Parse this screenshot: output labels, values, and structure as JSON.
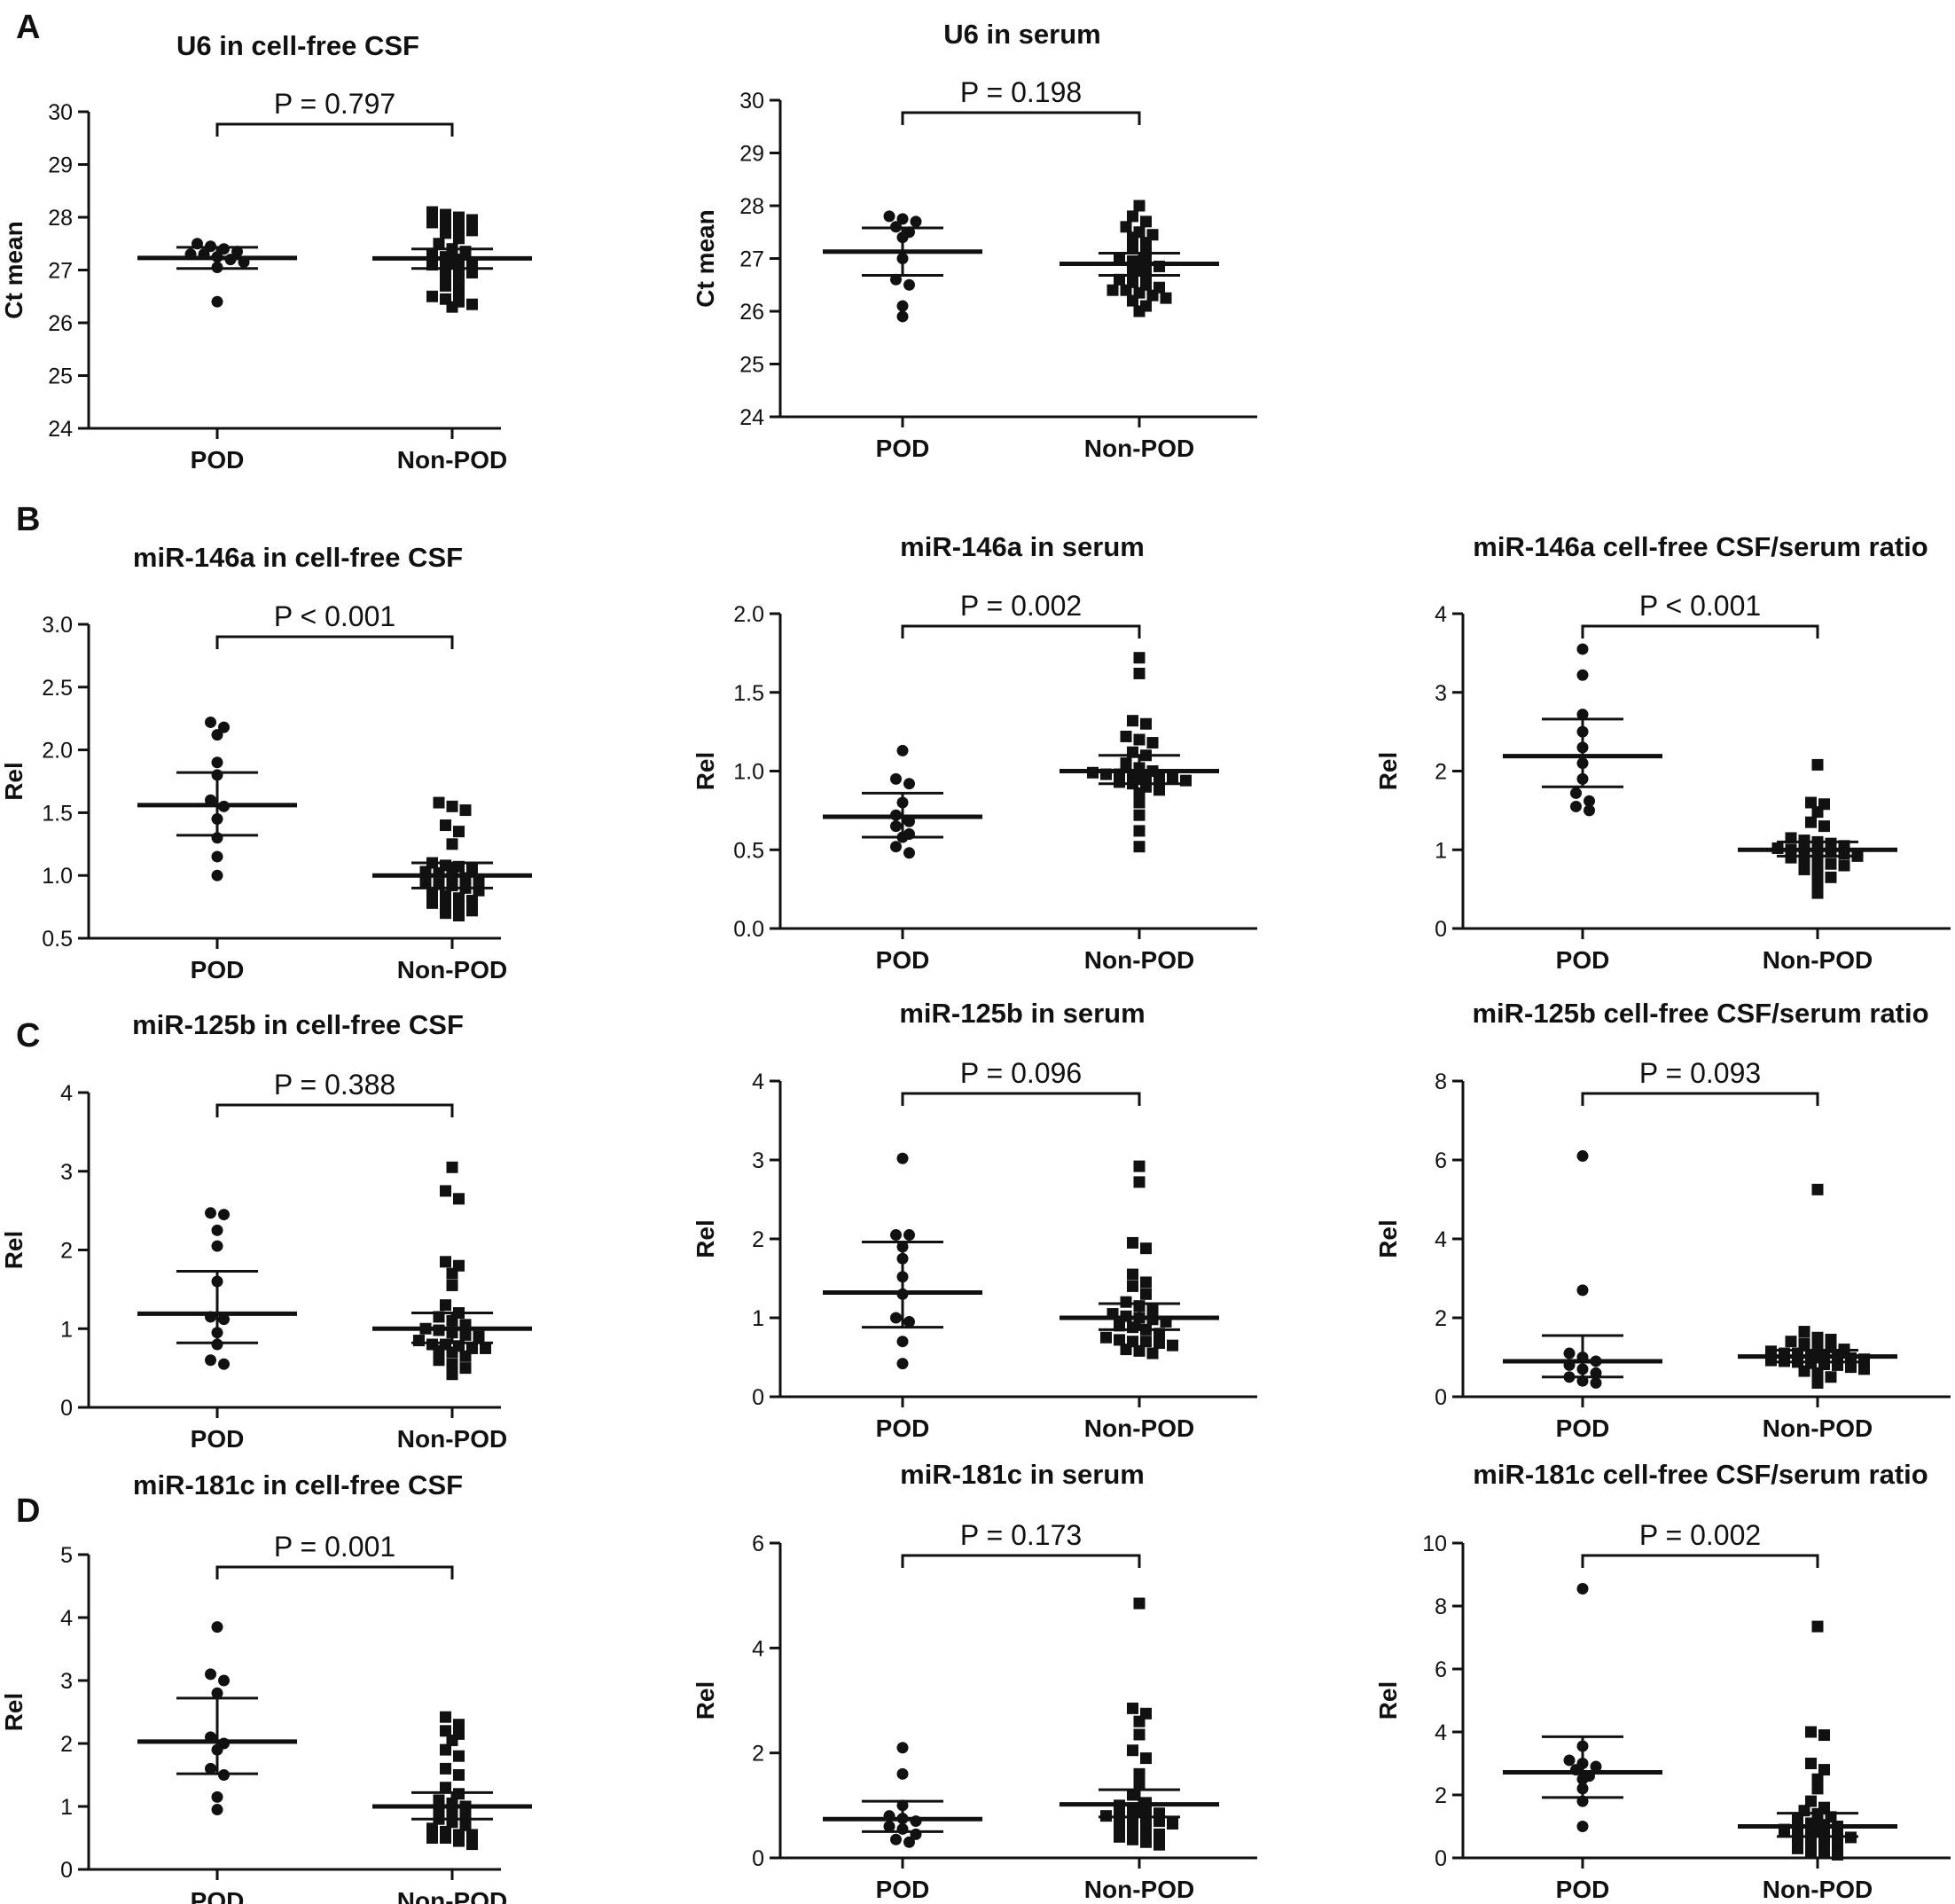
{
  "panel_letters": [
    "A",
    "B",
    "C",
    "D"
  ],
  "chart_data": [
    {
      "id": "A1",
      "panel": "A",
      "type": "scatter",
      "title": "U6 in cell-free CSF",
      "ylabel": "Ct mean",
      "ylim": [
        24,
        30
      ],
      "yticks": [
        "24",
        "25",
        "26",
        "27",
        "28",
        "29",
        "30"
      ],
      "categories": [
        "POD",
        "Non-POD"
      ],
      "pvalue": "P = 0.797",
      "series": [
        {
          "name": "POD",
          "marker": "circle",
          "values": [
            27.5,
            27.45,
            27.4,
            27.35,
            27.3,
            27.3,
            27.25,
            27.2,
            27.15,
            27.05,
            26.4
          ],
          "mean": 27.23,
          "ci": [
            27.03,
            27.43
          ]
        },
        {
          "name": "Non-POD",
          "marker": "square",
          "values": [
            28.1,
            28.05,
            28.0,
            27.95,
            27.9,
            27.85,
            27.8,
            27.75,
            27.7,
            27.6,
            27.5,
            27.4,
            27.35,
            27.3,
            27.25,
            27.2,
            27.15,
            27.1,
            27.05,
            27.0,
            26.95,
            26.9,
            26.8,
            26.7,
            26.6,
            26.5,
            26.4,
            26.3,
            26.35,
            26.45
          ],
          "mean": 27.22,
          "ci": [
            27.03,
            27.4
          ]
        }
      ]
    },
    {
      "id": "A2",
      "panel": "A",
      "type": "scatter",
      "title": "U6 in serum",
      "ylabel": "Ct mean",
      "ylim": [
        24,
        30
      ],
      "yticks": [
        "24",
        "25",
        "26",
        "27",
        "28",
        "29",
        "30"
      ],
      "categories": [
        "POD",
        "Non-POD"
      ],
      "pvalue": "P = 0.198",
      "series": [
        {
          "name": "POD",
          "marker": "circle",
          "values": [
            27.8,
            27.75,
            27.7,
            27.6,
            27.5,
            27.4,
            27.0,
            26.6,
            26.5,
            26.1,
            25.9
          ],
          "mean": 27.13,
          "ci": [
            26.68,
            27.58
          ]
        },
        {
          "name": "Non-POD",
          "marker": "square",
          "values": [
            28.0,
            27.8,
            27.7,
            27.6,
            27.5,
            27.45,
            27.4,
            27.3,
            27.2,
            27.1,
            27.0,
            26.95,
            26.9,
            26.85,
            26.8,
            26.7,
            26.6,
            26.55,
            26.5,
            26.45,
            26.4,
            26.4,
            26.35,
            26.3,
            26.25,
            26.2,
            26.1,
            26.0
          ],
          "mean": 26.9,
          "ci": [
            26.68,
            27.1
          ]
        }
      ]
    },
    {
      "id": "B1",
      "panel": "B",
      "type": "scatter",
      "title": "miR-146a  in cell-free CSF",
      "ylabel": "Rel",
      "ylim": [
        0.5,
        3.0
      ],
      "yticks": [
        "0.5",
        "1.0",
        "1.5",
        "2.0",
        "2.5",
        "3.0"
      ],
      "categories": [
        "POD",
        "Non-POD"
      ],
      "pvalue": "P < 0.001",
      "series": [
        {
          "name": "POD",
          "marker": "circle",
          "values": [
            2.22,
            2.18,
            2.12,
            1.9,
            1.8,
            1.6,
            1.55,
            1.45,
            1.3,
            1.15,
            1.0
          ],
          "mean": 1.56,
          "ci": [
            1.32,
            1.82
          ]
        },
        {
          "name": "Non-POD",
          "marker": "square",
          "values": [
            1.58,
            1.55,
            1.52,
            1.4,
            1.35,
            1.25,
            1.1,
            1.08,
            1.07,
            1.05,
            1.03,
            1.02,
            1.0,
            0.98,
            0.97,
            0.95,
            0.93,
            0.92,
            0.9,
            0.88,
            0.86,
            0.84,
            0.82,
            0.8,
            0.78,
            0.76,
            0.74,
            0.72,
            0.7,
            0.68
          ],
          "mean": 1.0,
          "ci": [
            0.9,
            1.1
          ]
        }
      ]
    },
    {
      "id": "B2",
      "panel": "B",
      "type": "scatter",
      "title": "miR-146a in serum",
      "ylabel": "Rel",
      "ylim": [
        0.0,
        2.0
      ],
      "yticks": [
        "0.0",
        "0.5",
        "1.0",
        "1.5",
        "2.0"
      ],
      "categories": [
        "POD",
        "Non-POD"
      ],
      "pvalue": "P = 0.002",
      "series": [
        {
          "name": "POD",
          "marker": "circle",
          "values": [
            1.13,
            0.95,
            0.92,
            0.8,
            0.72,
            0.68,
            0.65,
            0.6,
            0.58,
            0.52,
            0.48
          ],
          "mean": 0.71,
          "ci": [
            0.58,
            0.86
          ]
        },
        {
          "name": "Non-POD",
          "marker": "square",
          "values": [
            1.72,
            1.62,
            1.32,
            1.3,
            1.22,
            1.2,
            1.18,
            1.12,
            1.1,
            1.05,
            1.02,
            1.0,
            0.99,
            0.98,
            0.98,
            0.97,
            0.96,
            0.95,
            0.95,
            0.94,
            0.93,
            0.92,
            0.9,
            0.88,
            0.86,
            0.8,
            0.72,
            0.62,
            0.52
          ],
          "mean": 1.0,
          "ci": [
            0.92,
            1.1
          ]
        }
      ]
    },
    {
      "id": "B3",
      "panel": "B",
      "type": "scatter",
      "title": "miR-146a cell-free CSF/serum ratio",
      "ylabel": "Rel",
      "ylim": [
        0,
        4
      ],
      "yticks": [
        "0",
        "1",
        "2",
        "3",
        "4"
      ],
      "categories": [
        "POD",
        "Non-POD"
      ],
      "pvalue": "P < 0.001",
      "series": [
        {
          "name": "POD",
          "marker": "circle",
          "values": [
            3.55,
            3.22,
            2.72,
            2.5,
            2.3,
            2.1,
            1.9,
            1.72,
            1.62,
            1.55,
            1.5
          ],
          "mean": 2.19,
          "ci": [
            1.8,
            2.66
          ]
        },
        {
          "name": "Non-POD",
          "marker": "square",
          "values": [
            2.08,
            1.6,
            1.58,
            1.48,
            1.35,
            1.3,
            1.15,
            1.12,
            1.1,
            1.08,
            1.05,
            1.02,
            1.0,
            1.0,
            0.98,
            0.97,
            0.95,
            0.92,
            0.9,
            0.88,
            0.85,
            0.82,
            0.8,
            0.75,
            0.72,
            0.65,
            0.58,
            0.45
          ],
          "mean": 1.0,
          "ci": [
            0.92,
            1.1
          ]
        }
      ]
    },
    {
      "id": "C1",
      "panel": "C",
      "type": "scatter",
      "title": "miR-125b in cell-free CSF",
      "ylabel": "Rel",
      "ylim": [
        0,
        4
      ],
      "yticks": [
        "0",
        "1",
        "2",
        "3",
        "4"
      ],
      "categories": [
        "POD",
        "Non-POD"
      ],
      "pvalue": "P = 0.388",
      "series": [
        {
          "name": "POD",
          "marker": "circle",
          "values": [
            2.47,
            2.45,
            2.25,
            2.05,
            1.6,
            1.15,
            1.12,
            0.95,
            0.8,
            0.6,
            0.55
          ],
          "mean": 1.19,
          "ci": [
            0.82,
            1.73
          ]
        },
        {
          "name": "Non-POD",
          "marker": "square",
          "values": [
            3.05,
            2.75,
            2.65,
            1.85,
            1.8,
            1.7,
            1.55,
            1.3,
            1.2,
            1.15,
            1.1,
            1.05,
            1.0,
            0.98,
            0.95,
            0.92,
            0.9,
            0.85,
            0.8,
            0.8,
            0.78,
            0.75,
            0.75,
            0.72,
            0.7,
            0.65,
            0.6,
            0.55,
            0.5,
            0.42
          ],
          "mean": 1.0,
          "ci": [
            0.82,
            1.2
          ]
        }
      ]
    },
    {
      "id": "C2",
      "panel": "C",
      "type": "scatter",
      "title": "miR-125b in serum",
      "ylabel": "Rel",
      "ylim": [
        0,
        4
      ],
      "yticks": [
        "0",
        "1",
        "2",
        "3",
        "4"
      ],
      "categories": [
        "POD",
        "Non-POD"
      ],
      "pvalue": "P = 0.096",
      "series": [
        {
          "name": "POD",
          "marker": "circle",
          "values": [
            3.02,
            2.05,
            2.05,
            1.9,
            1.75,
            1.52,
            1.3,
            1.0,
            0.95,
            0.7,
            0.42
          ],
          "mean": 1.32,
          "ci": [
            0.88,
            1.96
          ]
        },
        {
          "name": "Non-POD",
          "marker": "square",
          "values": [
            2.92,
            2.72,
            1.95,
            1.88,
            1.55,
            1.45,
            1.4,
            1.3,
            1.2,
            1.15,
            1.1,
            1.05,
            1.02,
            1.0,
            0.98,
            0.95,
            0.9,
            0.88,
            0.85,
            0.8,
            0.75,
            0.72,
            0.7,
            0.7,
            0.68,
            0.65,
            0.6,
            0.58,
            0.55
          ],
          "mean": 1.0,
          "ci": [
            0.85,
            1.18
          ]
        }
      ]
    },
    {
      "id": "C3",
      "panel": "C",
      "type": "scatter",
      "title": "miR-125b cell-free CSF/serum ratio",
      "ylabel": "Rel",
      "ylim": [
        0,
        8
      ],
      "yticks": [
        "0",
        "2",
        "4",
        "6",
        "8"
      ],
      "categories": [
        "POD",
        "Non-POD"
      ],
      "pvalue": "P = 0.093",
      "series": [
        {
          "name": "POD",
          "marker": "circle",
          "values": [
            6.1,
            2.7,
            1.1,
            1.0,
            0.9,
            0.8,
            0.7,
            0.6,
            0.5,
            0.4,
            0.35
          ],
          "mean": 0.9,
          "ci": [
            0.5,
            1.55
          ]
        },
        {
          "name": "Non-POD",
          "marker": "square",
          "values": [
            5.25,
            1.65,
            1.5,
            1.45,
            1.4,
            1.35,
            1.3,
            1.25,
            1.2,
            1.15,
            1.1,
            1.1,
            1.05,
            1.0,
            1.0,
            0.98,
            0.95,
            0.92,
            0.9,
            0.88,
            0.85,
            0.82,
            0.8,
            0.75,
            0.7,
            0.65,
            0.6,
            0.5,
            0.35
          ],
          "mean": 1.02,
          "ci": [
            0.88,
            1.18
          ]
        }
      ]
    },
    {
      "id": "D1",
      "panel": "D",
      "type": "scatter",
      "title": "miR-181c in cell-free CSF",
      "ylabel": "Rel",
      "ylim": [
        0,
        5
      ],
      "yticks": [
        "0",
        "1",
        "2",
        "3",
        "4",
        "5"
      ],
      "categories": [
        "POD",
        "Non-POD"
      ],
      "pvalue": "P = 0.001",
      "series": [
        {
          "name": "POD",
          "marker": "circle",
          "values": [
            3.85,
            3.1,
            3.0,
            2.8,
            2.1,
            2.0,
            1.9,
            1.6,
            1.5,
            1.15,
            0.95
          ],
          "mean": 2.03,
          "ci": [
            1.52,
            2.72
          ]
        },
        {
          "name": "Non-POD",
          "marker": "square",
          "values": [
            2.42,
            2.3,
            2.2,
            2.15,
            2.05,
            1.9,
            1.8,
            1.6,
            1.5,
            1.3,
            1.2,
            1.1,
            1.05,
            1.0,
            0.95,
            0.9,
            0.85,
            0.8,
            0.75,
            0.7,
            0.65,
            0.6,
            0.55,
            0.55,
            0.5,
            0.5,
            0.45,
            0.4
          ],
          "mean": 1.0,
          "ci": [
            0.8,
            1.22
          ]
        }
      ]
    },
    {
      "id": "D2",
      "panel": "D",
      "type": "scatter",
      "title": "miR-181c in serum",
      "ylabel": "Rel",
      "ylim": [
        0,
        6
      ],
      "yticks": [
        "0",
        "2",
        "4",
        "6"
      ],
      "categories": [
        "POD",
        "Non-POD"
      ],
      "pvalue": "P = 0.173",
      "series": [
        {
          "name": "POD",
          "marker": "circle",
          "values": [
            2.1,
            1.6,
            1.0,
            0.8,
            0.75,
            0.7,
            0.6,
            0.55,
            0.45,
            0.35,
            0.3
          ],
          "mean": 0.74,
          "ci": [
            0.5,
            1.08
          ]
        },
        {
          "name": "Non-POD",
          "marker": "square",
          "values": [
            4.85,
            2.85,
            2.75,
            2.6,
            2.35,
            2.05,
            1.9,
            1.6,
            1.4,
            1.2,
            1.05,
            1.0,
            0.95,
            0.9,
            0.85,
            0.8,
            0.8,
            0.75,
            0.7,
            0.7,
            0.65,
            0.6,
            0.55,
            0.5,
            0.45,
            0.4,
            0.35,
            0.3,
            0.25
          ],
          "mean": 1.02,
          "ci": [
            0.78,
            1.3
          ]
        }
      ]
    },
    {
      "id": "D3",
      "panel": "D",
      "type": "scatter",
      "title": "miR-181c cell-free CSF/serum ratio",
      "ylabel": "Rel",
      "ylim": [
        0,
        10
      ],
      "yticks": [
        "0",
        "2",
        "4",
        "6",
        "8",
        "10"
      ],
      "categories": [
        "POD",
        "Non-POD"
      ],
      "pvalue": "P = 0.002",
      "series": [
        {
          "name": "POD",
          "marker": "circle",
          "values": [
            8.55,
            3.55,
            3.1,
            3.0,
            2.9,
            2.8,
            2.6,
            2.5,
            2.2,
            1.8,
            1.0
          ],
          "mean": 2.72,
          "ci": [
            1.92,
            3.85
          ]
        },
        {
          "name": "Non-POD",
          "marker": "square",
          "values": [
            7.35,
            4.0,
            3.9,
            3.0,
            2.8,
            2.5,
            2.2,
            1.8,
            1.6,
            1.5,
            1.4,
            1.3,
            1.2,
            1.1,
            1.05,
            1.0,
            0.9,
            0.85,
            0.8,
            0.75,
            0.7,
            0.65,
            0.6,
            0.5,
            0.45,
            0.4,
            0.3,
            0.2,
            0.15,
            0.1
          ],
          "mean": 1.0,
          "ci": [
            0.68,
            1.42
          ]
        }
      ]
    }
  ]
}
